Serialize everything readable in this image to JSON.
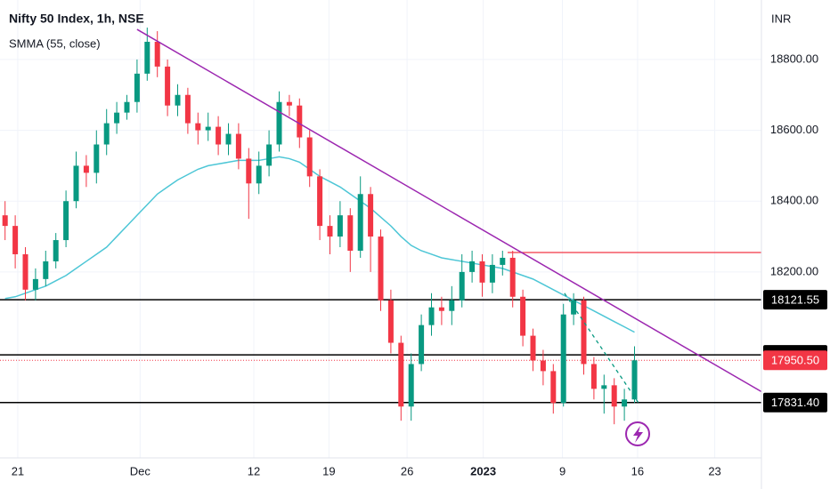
{
  "chart_data": {
    "type": "candlestick",
    "title": "Nifty 50 Index, 1h, NSE",
    "indicator": "SMMA (55, close)",
    "currency": "INR",
    "xlim": [
      0,
      75
    ],
    "xticks": [
      {
        "value": 1.75,
        "label": "21"
      },
      {
        "value": 13.8,
        "label": "Dec"
      },
      {
        "value": 25,
        "label": "12"
      },
      {
        "value": 32.4,
        "label": "19"
      },
      {
        "value": 40.1,
        "label": "26"
      },
      {
        "value": 47.6,
        "label": "2023"
      },
      {
        "value": 55.4,
        "label": "9"
      },
      {
        "value": 62.8,
        "label": "16"
      },
      {
        "value": 70.4,
        "label": "23"
      }
    ],
    "ylim": [
      17675,
      18968
    ],
    "yticks": [
      {
        "value": 18200,
        "label": "18200.00"
      },
      {
        "value": 18400,
        "label": "18400.00"
      },
      {
        "value": 18600,
        "label": "18600.00"
      },
      {
        "value": 18800,
        "label": "18800.00"
      }
    ],
    "up_color": "#089981",
    "down_color": "#f23645",
    "candles": {
      "open": [
        18360,
        18330,
        18250,
        18150,
        18180,
        18230,
        18290,
        18400,
        18500,
        18480,
        18560,
        18620,
        18650,
        18680,
        18760,
        18850,
        18780,
        18670,
        18700,
        18620,
        18600,
        18610,
        18560,
        18590,
        18520,
        18450,
        18500,
        18560,
        18680,
        18670,
        18580,
        18470,
        18330,
        18300,
        18360,
        18260,
        18420,
        18300,
        18120,
        18000,
        17820,
        17940,
        18050,
        18100,
        18090,
        18120,
        18200,
        18230,
        18170,
        18220,
        18240,
        18130,
        18020,
        17950,
        17920,
        17830,
        18080,
        18120,
        17940,
        17870,
        17880,
        17820,
        17840
      ],
      "high": [
        18400,
        18360,
        18270,
        18210,
        18260,
        18310,
        18430,
        18540,
        18530,
        18600,
        18660,
        18680,
        18700,
        18800,
        18890,
        18880,
        18800,
        18730,
        18720,
        18650,
        18650,
        18640,
        18620,
        18620,
        18550,
        18540,
        18600,
        18710,
        18700,
        18690,
        18600,
        18490,
        18360,
        18400,
        18380,
        18470,
        18440,
        18320,
        18150,
        18020,
        17970,
        18080,
        18140,
        18130,
        18160,
        18250,
        18260,
        18250,
        18250,
        18260,
        18260,
        18150,
        18040,
        17980,
        17940,
        18110,
        18140,
        18130,
        17960,
        17910,
        17900,
        17870,
        17990
      ],
      "low": [
        18290,
        18210,
        18120,
        18120,
        18160,
        18210,
        18270,
        18380,
        18440,
        18450,
        18530,
        18590,
        18630,
        18650,
        18740,
        18750,
        18640,
        18640,
        18590,
        18560,
        18570,
        18530,
        18530,
        18490,
        18350,
        18420,
        18470,
        18540,
        18640,
        18550,
        18440,
        18290,
        18250,
        18270,
        18200,
        18240,
        18200,
        18090,
        17970,
        17780,
        17780,
        17920,
        18020,
        18050,
        18050,
        18100,
        18170,
        18130,
        18140,
        18190,
        18100,
        17990,
        17920,
        17880,
        17800,
        17820,
        18050,
        17910,
        17840,
        17800,
        17770,
        17780,
        17830
      ],
      "close": [
        18330,
        18250,
        18150,
        18180,
        18230,
        18290,
        18400,
        18500,
        18480,
        18560,
        18620,
        18650,
        18680,
        18760,
        18850,
        18780,
        18670,
        18700,
        18620,
        18600,
        18610,
        18560,
        18590,
        18520,
        18450,
        18500,
        18560,
        18680,
        18670,
        18580,
        18470,
        18330,
        18300,
        18360,
        18260,
        18420,
        18300,
        18120,
        18000,
        17820,
        17940,
        18050,
        18100,
        18090,
        18120,
        18200,
        18230,
        18170,
        18220,
        18240,
        18130,
        18020,
        17950,
        17920,
        17830,
        18080,
        18120,
        17940,
        17870,
        17880,
        17820,
        17840,
        17950.5
      ]
    },
    "smma": {
      "color": "#4dc6d6",
      "values": [
        18125,
        18130,
        18140,
        18150,
        18160,
        18175,
        18190,
        18210,
        18230,
        18250,
        18270,
        18300,
        18330,
        18360,
        18390,
        18420,
        18440,
        18460,
        18475,
        18490,
        18500,
        18505,
        18510,
        18515,
        18515,
        18515,
        18520,
        18525,
        18520,
        18510,
        18490,
        18470,
        18455,
        18440,
        18420,
        18400,
        18380,
        18355,
        18330,
        18300,
        18275,
        18260,
        18250,
        18240,
        18235,
        18230,
        18225,
        18220,
        18215,
        18210,
        18200,
        18190,
        18180,
        18165,
        18150,
        18135,
        18120,
        18105,
        18090,
        18075,
        18060,
        18045,
        18030
      ]
    },
    "trendline": {
      "color": "#9c27b0",
      "x": [
        13.5,
        75
      ],
      "y": [
        18885,
        17862
      ]
    },
    "trendline_dashed": {
      "color": "#089981",
      "x": [
        55.6,
        62.9
      ],
      "y": [
        18140,
        17830
      ]
    },
    "resistance": {
      "color": "#f23645",
      "x_start": 50,
      "value": 18255
    },
    "levels": {
      "values": [
        18121.55,
        17965.95,
        17831.4
      ],
      "value_labels": [
        "18121.55",
        "17965.95",
        "17831.40"
      ]
    },
    "last_price": 17950.5,
    "last_price_label": "17950.50"
  }
}
